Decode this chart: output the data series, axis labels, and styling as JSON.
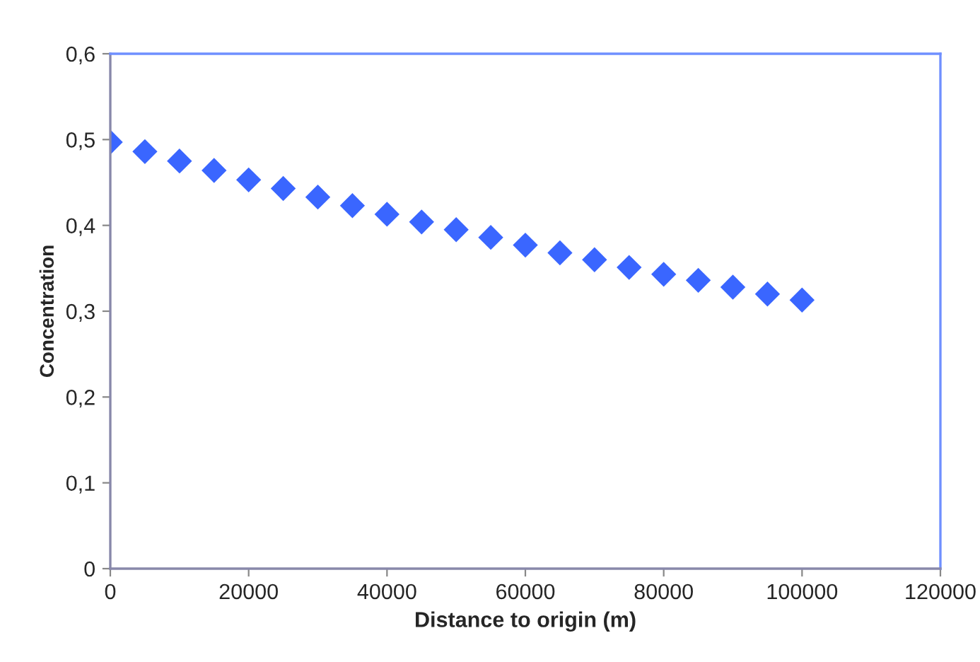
{
  "chart_data": {
    "type": "scatter",
    "xlabel": "Distance to origin (m)",
    "ylabel": "Concentration",
    "x": [
      0,
      5000,
      10000,
      15000,
      20000,
      25000,
      30000,
      35000,
      40000,
      45000,
      50000,
      55000,
      60000,
      65000,
      70000,
      75000,
      80000,
      85000,
      90000,
      95000,
      100000
    ],
    "series": [
      {
        "color": "#3a66ff",
        "values": [
          0.497,
          0.486,
          0.475,
          0.464,
          0.453,
          0.443,
          0.433,
          0.423,
          0.413,
          0.404,
          0.395,
          0.386,
          0.377,
          0.368,
          0.36,
          0.351,
          0.343,
          0.336,
          0.328,
          0.32,
          0.313
        ]
      }
    ],
    "marker": "diamond",
    "xlim": [
      0,
      120000
    ],
    "xticks": [
      0,
      20000,
      40000,
      60000,
      80000,
      100000,
      120000
    ],
    "ylim": [
      0,
      0.6
    ],
    "yticks": [
      {
        "value": 0,
        "label": "0"
      },
      {
        "value": 0.1,
        "label": "0,1"
      },
      {
        "value": 0.2,
        "label": "0,2"
      },
      {
        "value": 0.3,
        "label": "0,3"
      },
      {
        "value": 0.4,
        "label": "0,4"
      },
      {
        "value": 0.5,
        "label": "0,5"
      },
      {
        "value": 0.6,
        "label": "0,6"
      }
    ],
    "grid": false,
    "legend": false
  }
}
